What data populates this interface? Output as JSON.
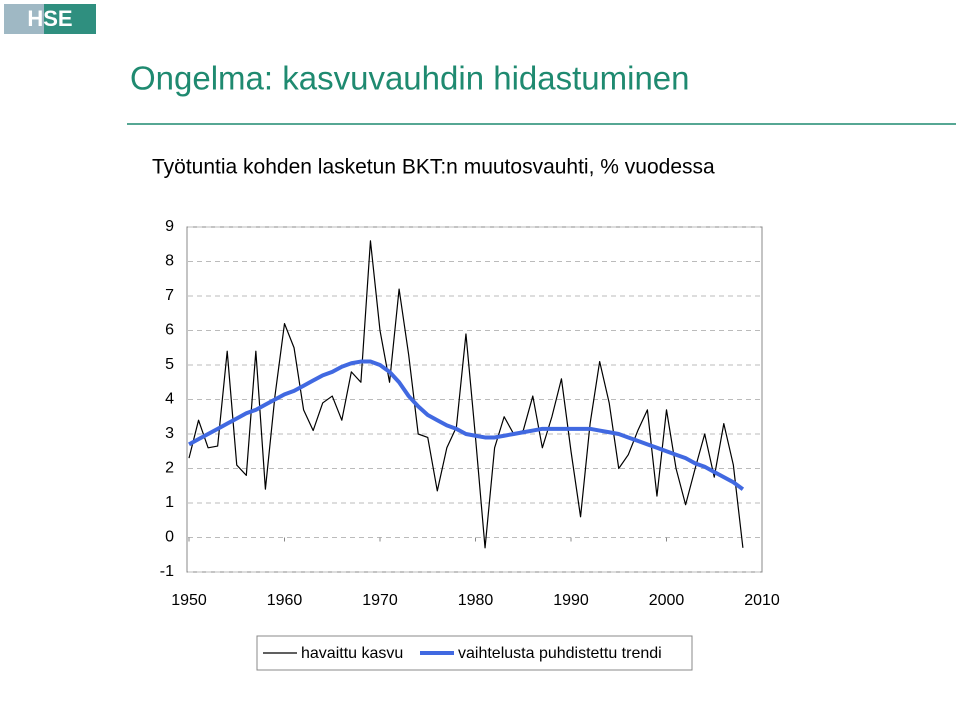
{
  "header": {
    "logo": "HSE",
    "title": "Ongelma: kasvuvauhdin hidastuminen"
  },
  "chart_data": {
    "type": "line",
    "title": "Työtuntia kohden lasketun BKT:n muutosvauhti, % vuodessa",
    "x": [
      1950,
      1951,
      1952,
      1953,
      1954,
      1955,
      1956,
      1957,
      1958,
      1959,
      1960,
      1961,
      1962,
      1963,
      1964,
      1965,
      1966,
      1967,
      1968,
      1969,
      1970,
      1971,
      1972,
      1973,
      1974,
      1975,
      1976,
      1977,
      1978,
      1979,
      1980,
      1981,
      1982,
      1983,
      1984,
      1985,
      1986,
      1987,
      1988,
      1989,
      1990,
      1991,
      1992,
      1993,
      1994,
      1995,
      1996,
      1997,
      1998,
      1999,
      2000,
      2001,
      2002,
      2003,
      2004,
      2005,
      2006,
      2007,
      2008
    ],
    "series": [
      {
        "name": "havaittu kasvu",
        "color": "#000000",
        "values": [
          2.3,
          3.4,
          2.6,
          2.65,
          5.4,
          2.1,
          1.8,
          5.4,
          1.4,
          4.1,
          6.2,
          5.5,
          3.7,
          3.1,
          3.9,
          4.1,
          3.4,
          4.8,
          4.5,
          8.6,
          6.0,
          4.5,
          7.2,
          5.3,
          3.0,
          2.9,
          1.35,
          2.6,
          3.2,
          5.9,
          2.9,
          -0.3,
          2.6,
          3.5,
          3.0,
          3.1,
          4.1,
          2.6,
          3.5,
          4.6,
          2.5,
          0.6,
          3.3,
          5.1,
          3.9,
          2.0,
          2.4,
          3.1,
          3.7,
          1.2,
          3.7,
          2.0,
          0.95,
          2.0,
          3.0,
          1.75,
          3.3,
          2.1,
          -0.3
        ]
      },
      {
        "name": "vaihtelusta puhdistettu trendi",
        "color": "#4169e1",
        "values": [
          2.7,
          2.85,
          3.0,
          3.15,
          3.3,
          3.45,
          3.6,
          3.7,
          3.85,
          4.0,
          4.15,
          4.25,
          4.4,
          4.55,
          4.7,
          4.8,
          4.95,
          5.05,
          5.1,
          5.1,
          5.0,
          4.8,
          4.5,
          4.1,
          3.8,
          3.55,
          3.4,
          3.25,
          3.15,
          3.0,
          2.95,
          2.9,
          2.9,
          2.95,
          3.0,
          3.05,
          3.1,
          3.15,
          3.15,
          3.15,
          3.15,
          3.15,
          3.15,
          3.1,
          3.05,
          3.0,
          2.9,
          2.8,
          2.7,
          2.6,
          2.5,
          2.4,
          2.3,
          2.15,
          2.05,
          1.9,
          1.75,
          1.6,
          1.4
        ]
      }
    ],
    "xlim": [
      1950,
      2010
    ],
    "xticks": [
      1950,
      1960,
      1970,
      1980,
      1990,
      2000,
      2010
    ],
    "ylim": [
      -1,
      9
    ],
    "yticks": [
      -1,
      0,
      1,
      2,
      3,
      4,
      5,
      6,
      7,
      8,
      9
    ],
    "grid": true,
    "legend": "bottom"
  }
}
